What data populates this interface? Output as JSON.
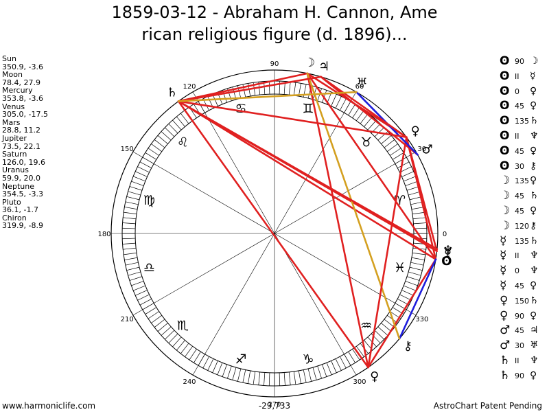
{
  "header": {
    "title_line1": "1859-03-12 - Abraham H. Cannon, Ame",
    "title_line2": "rican religious figure (d. 1896)..."
  },
  "planets": [
    {
      "name": "Sun",
      "coords": "350.9, -3.6"
    },
    {
      "name": "Moon",
      "coords": "78.4, 27.9"
    },
    {
      "name": "Mercury",
      "coords": "353.8, -3.6"
    },
    {
      "name": "Venus",
      "coords": "305.0, -17.5"
    },
    {
      "name": "Mars",
      "coords": "28.8, 11.2"
    },
    {
      "name": "Jupiter",
      "coords": "73.5, 22.1"
    },
    {
      "name": "Saturn",
      "coords": "126.0, 19.6"
    },
    {
      "name": "Uranus",
      "coords": "59.9, 20.0"
    },
    {
      "name": "Neptune",
      "coords": "354.5, -3.3"
    },
    {
      "name": "Pluto",
      "coords": "36.1, -1.7"
    },
    {
      "name": "Chiron",
      "coords": "319.9, -8.9"
    }
  ],
  "aspects": [
    {
      "p1": "ʘ",
      "asp": "90",
      "p2": "☽"
    },
    {
      "p1": "ʘ",
      "asp": "II",
      "p2": "☿"
    },
    {
      "p1": "ʘ",
      "asp": "0",
      "p2": "♀"
    },
    {
      "p1": "ʘ",
      "asp": "45",
      "p2": "♀"
    },
    {
      "p1": "ʘ",
      "asp": "135",
      "p2": "♄"
    },
    {
      "p1": "ʘ",
      "asp": "II",
      "p2": "♆"
    },
    {
      "p1": "ʘ",
      "asp": "45",
      "p2": "♀"
    },
    {
      "p1": "ʘ",
      "asp": "30",
      "p2": "⚷"
    },
    {
      "p1": "☽",
      "asp": "135",
      "p2": "♀"
    },
    {
      "p1": "☽",
      "asp": "45",
      "p2": "♄"
    },
    {
      "p1": "☽",
      "asp": "45",
      "p2": "♀"
    },
    {
      "p1": "☽",
      "asp": "120",
      "p2": "⚷"
    },
    {
      "p1": "☿",
      "asp": "135",
      "p2": "♄"
    },
    {
      "p1": "☿",
      "asp": "II",
      "p2": "♆"
    },
    {
      "p1": "☿",
      "asp": "0",
      "p2": "♆"
    },
    {
      "p1": "☿",
      "asp": "45",
      "p2": "♀"
    },
    {
      "p1": "♀",
      "asp": "150",
      "p2": "♄"
    },
    {
      "p1": "♀",
      "asp": "90",
      "p2": "♀"
    },
    {
      "p1": "♂",
      "asp": "45",
      "p2": "♃"
    },
    {
      "p1": "♂",
      "asp": "30",
      "p2": "♅"
    },
    {
      "p1": "♄",
      "asp": "II",
      "p2": "♆"
    },
    {
      "p1": "♄",
      "asp": "90",
      "p2": "♀"
    }
  ],
  "wheel": {
    "degree_labels": [
      {
        "deg": 0,
        "text": "0"
      },
      {
        "deg": 30,
        "text": "30"
      },
      {
        "deg": 60,
        "text": "60"
      },
      {
        "deg": 90,
        "text": "90"
      },
      {
        "deg": 120,
        "text": "120"
      },
      {
        "deg": 150,
        "text": "150"
      },
      {
        "deg": 180,
        "text": "180"
      },
      {
        "deg": 210,
        "text": "210"
      },
      {
        "deg": 240,
        "text": "240"
      },
      {
        "deg": 270,
        "text": "270"
      },
      {
        "deg": 300,
        "text": "300"
      },
      {
        "deg": 330,
        "text": "330"
      }
    ],
    "signs": [
      {
        "deg": 15,
        "glyph": "♈",
        "name": "aries"
      },
      {
        "deg": 45,
        "glyph": "♉",
        "name": "taurus"
      },
      {
        "deg": 75,
        "glyph": "♊",
        "name": "gemini"
      },
      {
        "deg": 105,
        "glyph": "♋",
        "name": "cancer"
      },
      {
        "deg": 135,
        "glyph": "♌",
        "name": "leo"
      },
      {
        "deg": 165,
        "glyph": "♍",
        "name": "virgo"
      },
      {
        "deg": 195,
        "glyph": "♎",
        "name": "libra"
      },
      {
        "deg": 225,
        "glyph": "♏",
        "name": "scorpio"
      },
      {
        "deg": 255,
        "glyph": "♐",
        "name": "sagittarius"
      },
      {
        "deg": 285,
        "glyph": "♑",
        "name": "capricorn"
      },
      {
        "deg": 315,
        "glyph": "♒",
        "name": "aquarius"
      },
      {
        "deg": 345,
        "glyph": "♓",
        "name": "pisces"
      }
    ],
    "planet_glyphs": [
      {
        "key": "sun",
        "glyph": "ʘ",
        "lon": 350.9
      },
      {
        "key": "moon",
        "glyph": "☽",
        "lon": 78.4
      },
      {
        "key": "mercury",
        "glyph": "☿",
        "lon": 353.8
      },
      {
        "key": "venus",
        "glyph": "♀",
        "lon": 305.0
      },
      {
        "key": "mars",
        "glyph": "♂",
        "lon": 28.8
      },
      {
        "key": "jupiter",
        "glyph": "♃",
        "lon": 73.5
      },
      {
        "key": "saturn",
        "glyph": "♄",
        "lon": 126.0
      },
      {
        "key": "uranus",
        "glyph": "♅",
        "lon": 59.9
      },
      {
        "key": "neptune",
        "glyph": "♆",
        "lon": 354.5
      },
      {
        "key": "pluto",
        "glyph": "♀",
        "lon": 36.1
      },
      {
        "key": "chiron",
        "glyph": "⚷",
        "lon": 319.9
      }
    ],
    "aspect_lines": [
      {
        "from": "sun",
        "to": "moon",
        "color": "#e02020"
      },
      {
        "from": "sun",
        "to": "venus",
        "color": "#e02020"
      },
      {
        "from": "sun",
        "to": "saturn",
        "color": "#e02020"
      },
      {
        "from": "sun",
        "to": "pluto",
        "color": "#e02020"
      },
      {
        "from": "sun",
        "to": "chiron",
        "color": "#1e1edc"
      },
      {
        "from": "mercury",
        "to": "saturn",
        "color": "#e02020"
      },
      {
        "from": "mercury",
        "to": "pluto",
        "color": "#e02020"
      },
      {
        "from": "moon",
        "to": "venus",
        "color": "#e02020"
      },
      {
        "from": "moon",
        "to": "saturn",
        "color": "#e02020"
      },
      {
        "from": "moon",
        "to": "pluto",
        "color": "#e02020"
      },
      {
        "from": "moon",
        "to": "chiron",
        "color": "#d4a020"
      },
      {
        "from": "venus",
        "to": "saturn",
        "color": "#e02020"
      },
      {
        "from": "venus",
        "to": "pluto",
        "color": "#e02020"
      },
      {
        "from": "mars",
        "to": "jupiter",
        "color": "#e02020"
      },
      {
        "from": "mars",
        "to": "uranus",
        "color": "#1e1edc"
      },
      {
        "from": "saturn",
        "to": "neptune",
        "color": "#e02020"
      },
      {
        "from": "saturn",
        "to": "pluto",
        "color": "#e02020"
      },
      {
        "from": "saturn",
        "to": "jupiter",
        "color": "#e02020"
      },
      {
        "from": "jupiter",
        "to": "pluto",
        "color": "#e02020"
      },
      {
        "from": "saturn",
        "to": "uranus",
        "color": "#d4a020"
      }
    ]
  },
  "footer": {
    "left": "www.harmoniclife.com",
    "center": "-29,733",
    "right": "AstroChart Patent Pending"
  }
}
